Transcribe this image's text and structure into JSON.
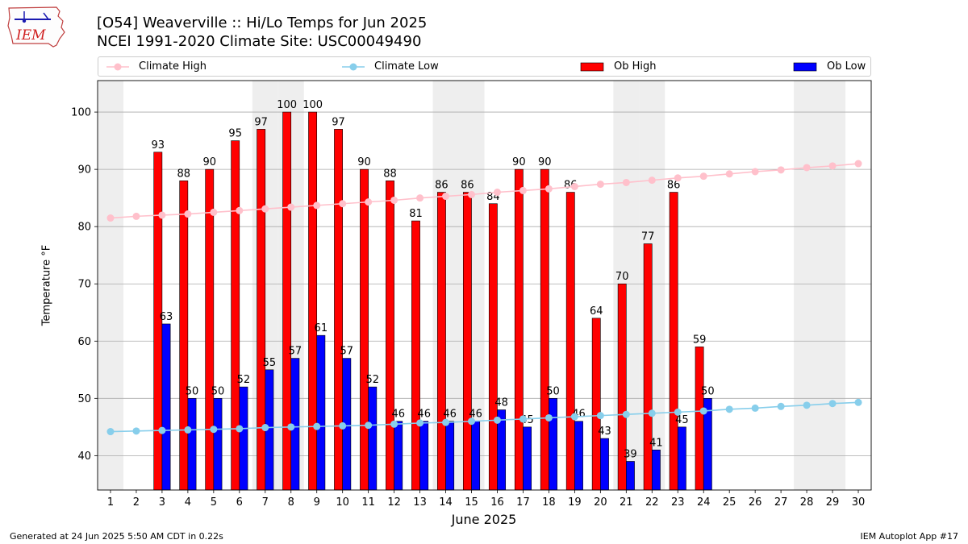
{
  "header": {
    "title_line1": "[O54] Weaverville :: Hi/Lo Temps for Jun 2025",
    "title_line2": "NCEI 1991-2020 Climate Site: USC00049490",
    "logo_text": "IEM"
  },
  "footer": {
    "left": "Generated at 24 Jun 2025 5:50 AM CDT in 0.22s",
    "right": "IEM Autoplot App #17"
  },
  "colors": {
    "climate_high": "#ffc0cb",
    "climate_low": "#87ceeb",
    "ob_high": "#ff0000",
    "ob_low": "#0000ff",
    "weekend_shade": "#eeeeee",
    "grid": "#aaaaaa"
  },
  "chart_data": {
    "type": "bar",
    "xlabel": "June 2025",
    "ylabel": "Temperature °F",
    "ylim": [
      34,
      105.5
    ],
    "yticks": [
      40,
      50,
      60,
      70,
      80,
      90,
      100
    ],
    "grid": "horizontal",
    "legend_placement": "top",
    "x": [
      1,
      2,
      3,
      4,
      5,
      6,
      7,
      8,
      9,
      10,
      11,
      12,
      13,
      14,
      15,
      16,
      17,
      18,
      19,
      20,
      21,
      22,
      23,
      24,
      25,
      26,
      27,
      28,
      29,
      30
    ],
    "shaded_days": [
      1,
      7,
      8,
      14,
      15,
      21,
      22,
      28,
      29
    ],
    "series": [
      {
        "name": "Climate High",
        "kind": "line",
        "values": [
          81.5,
          81.8,
          82.0,
          82.2,
          82.5,
          82.8,
          83.1,
          83.4,
          83.7,
          84.0,
          84.3,
          84.6,
          85.0,
          85.3,
          85.6,
          86.0,
          86.3,
          86.6,
          87.0,
          87.4,
          87.7,
          88.1,
          88.5,
          88.8,
          89.2,
          89.6,
          89.9,
          90.3,
          90.6,
          91.0
        ]
      },
      {
        "name": "Climate Low",
        "kind": "line",
        "values": [
          44.2,
          44.3,
          44.4,
          44.5,
          44.6,
          44.7,
          44.9,
          45.0,
          45.1,
          45.2,
          45.3,
          45.5,
          45.7,
          45.8,
          46.0,
          46.2,
          46.4,
          46.6,
          46.8,
          47.0,
          47.2,
          47.4,
          47.6,
          47.8,
          48.1,
          48.3,
          48.6,
          48.8,
          49.1,
          49.3
        ]
      },
      {
        "name": "Ob High",
        "kind": "bar",
        "values": [
          null,
          null,
          93,
          88,
          90,
          95,
          97,
          100,
          100,
          97,
          90,
          88,
          81,
          86,
          86,
          84,
          90,
          90,
          86,
          64,
          70,
          77,
          86,
          59,
          null,
          null,
          null,
          null,
          null,
          null
        ]
      },
      {
        "name": "Ob Low",
        "kind": "bar",
        "values": [
          null,
          null,
          63,
          50,
          50,
          52,
          55,
          57,
          61,
          57,
          52,
          46,
          46,
          46,
          46,
          48,
          45,
          50,
          46,
          43,
          39,
          41,
          45,
          50,
          null,
          null,
          null,
          null,
          null,
          null
        ]
      }
    ]
  }
}
